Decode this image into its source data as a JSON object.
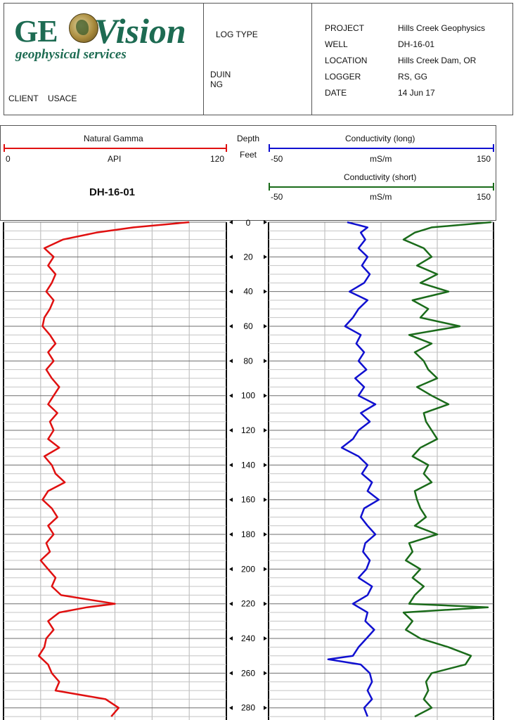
{
  "header": {
    "logo_main_left": "GE",
    "logo_main_right": "Vision",
    "logo_sub": "geophysical services",
    "client_label": "CLIENT",
    "client_value": "USACE",
    "log_type_label": "LOG TYPE",
    "log_type_line1": "DUIN",
    "log_type_line2": "NG",
    "fields": [
      {
        "label": "PROJECT",
        "value": "Hills Creek Geophysics"
      },
      {
        "label": "WELL",
        "value": "DH-16-01"
      },
      {
        "label": "LOCATION",
        "value": "Hills Creek Dam, OR"
      },
      {
        "label": "LOGGER",
        "value": "RS, GG"
      },
      {
        "label": "DATE",
        "value": "14 Jun 17"
      }
    ]
  },
  "scales": {
    "gamma_title": "Natural Gamma",
    "gamma_min": "0",
    "gamma_unit": "API",
    "gamma_max": "120",
    "depth_title": "Depth",
    "depth_unit": "Feet",
    "well_name": "DH-16-01",
    "cond_long_title": "Conductivity (long)",
    "cond_short_title": "Conductivity (short)",
    "cond_min": "-50",
    "cond_unit": "mS/m",
    "cond_max": "150"
  },
  "colors": {
    "gamma": "#e01010",
    "cond_long": "#1010d0",
    "cond_short": "#1a6b1a"
  },
  "chart_data": {
    "type": "line",
    "ylabel": "Depth (Feet)",
    "ylim": [
      0,
      287
    ],
    "y_ticks": [
      0,
      20,
      40,
      60,
      80,
      100,
      120,
      140,
      160,
      180,
      200,
      220,
      240,
      260,
      280
    ],
    "depth_tick_labels": [
      "0",
      "20",
      "40",
      "60",
      "80",
      "100",
      "120",
      "140",
      "160",
      "180",
      "200",
      "220",
      "240",
      "260",
      "280"
    ],
    "gamma_xlim": [
      0,
      120
    ],
    "cond_xlim": [
      -50,
      150
    ],
    "grid": true,
    "series": [
      {
        "name": "Natural Gamma",
        "unit": "API",
        "track": "gamma",
        "depth": [
          0,
          3,
          6,
          10,
          15,
          20,
          25,
          30,
          35,
          40,
          45,
          50,
          55,
          60,
          65,
          70,
          75,
          80,
          85,
          90,
          95,
          100,
          105,
          110,
          115,
          120,
          125,
          130,
          135,
          140,
          145,
          150,
          155,
          160,
          165,
          170,
          175,
          180,
          185,
          190,
          195,
          200,
          205,
          210,
          215,
          220,
          222,
          225,
          230,
          235,
          240,
          245,
          250,
          255,
          260,
          265,
          270,
          275,
          280,
          285
        ],
        "values": [
          100,
          70,
          50,
          32,
          22,
          27,
          24,
          28,
          26,
          23,
          27,
          25,
          22,
          21,
          25,
          28,
          24,
          27,
          23,
          26,
          30,
          27,
          24,
          29,
          25,
          27,
          24,
          30,
          22,
          26,
          28,
          33,
          24,
          21,
          26,
          29,
          24,
          27,
          23,
          25,
          20,
          24,
          28,
          26,
          31,
          60,
          45,
          30,
          24,
          27,
          23,
          22,
          19,
          24,
          26,
          30,
          28,
          55,
          62,
          58
        ]
      },
      {
        "name": "Conductivity (long)",
        "unit": "mS/m",
        "track": "conductivity",
        "depth": [
          0,
          3,
          6,
          10,
          15,
          20,
          25,
          30,
          35,
          40,
          45,
          50,
          55,
          60,
          65,
          70,
          75,
          80,
          85,
          90,
          95,
          100,
          105,
          110,
          115,
          120,
          125,
          130,
          135,
          140,
          145,
          150,
          155,
          160,
          165,
          170,
          175,
          180,
          185,
          190,
          195,
          200,
          205,
          210,
          215,
          220,
          225,
          230,
          235,
          240,
          245,
          250,
          252,
          255,
          260,
          265,
          270,
          275,
          280,
          285
        ],
        "values": [
          20,
          38,
          32,
          36,
          30,
          38,
          33,
          40,
          35,
          22,
          38,
          30,
          25,
          18,
          32,
          28,
          35,
          30,
          37,
          27,
          35,
          30,
          45,
          32,
          40,
          30,
          25,
          15,
          30,
          38,
          33,
          42,
          38,
          48,
          35,
          32,
          38,
          45,
          36,
          34,
          40,
          37,
          30,
          42,
          38,
          25,
          38,
          36,
          44,
          37,
          30,
          25,
          3,
          32,
          40,
          42,
          38,
          42,
          35,
          38
        ]
      },
      {
        "name": "Conductivity (short)",
        "unit": "mS/m",
        "track": "conductivity",
        "depth": [
          0,
          3,
          6,
          10,
          15,
          20,
          25,
          30,
          35,
          40,
          45,
          50,
          55,
          60,
          65,
          70,
          75,
          80,
          85,
          90,
          95,
          100,
          105,
          110,
          115,
          120,
          125,
          130,
          135,
          140,
          145,
          150,
          155,
          160,
          165,
          170,
          175,
          180,
          185,
          190,
          195,
          200,
          205,
          210,
          215,
          220,
          222,
          225,
          230,
          235,
          240,
          245,
          250,
          255,
          260,
          265,
          270,
          275,
          280,
          285
        ],
        "values": [
          148,
          95,
          80,
          70,
          88,
          95,
          82,
          100,
          85,
          110,
          78,
          92,
          85,
          120,
          75,
          95,
          80,
          88,
          92,
          100,
          82,
          95,
          110,
          88,
          90,
          95,
          100,
          85,
          78,
          92,
          88,
          95,
          80,
          82,
          85,
          90,
          80,
          100,
          75,
          78,
          72,
          85,
          78,
          88,
          80,
          75,
          145,
          70,
          78,
          72,
          85,
          110,
          130,
          125,
          95,
          90,
          92,
          88,
          95,
          80
        ]
      }
    ]
  }
}
